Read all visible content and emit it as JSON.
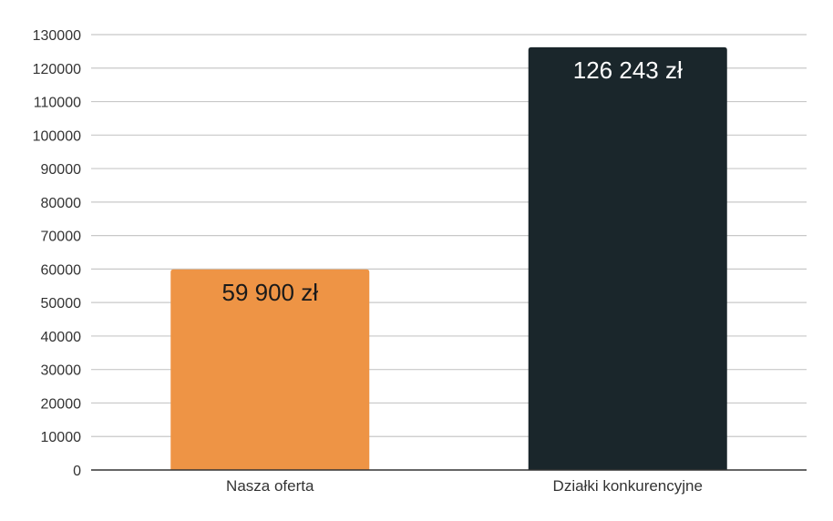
{
  "chart_data": {
    "type": "bar",
    "title": "",
    "xlabel": "",
    "ylabel": "",
    "categories": [
      "Nasza oferta",
      "Działki konkurencyjne"
    ],
    "values": [
      59900,
      126243
    ],
    "data_labels": [
      "59 900 zł",
      "126 243 zł"
    ],
    "ylim": [
      0,
      130000
    ],
    "yticks": [
      0,
      10000,
      20000,
      30000,
      40000,
      50000,
      60000,
      70000,
      80000,
      90000,
      100000,
      110000,
      120000,
      130000
    ],
    "ytick_labels": [
      "0",
      "10000",
      "20000",
      "30000",
      "40000",
      "50000",
      "60000",
      "70000",
      "80000",
      "90000",
      "100000",
      "110000",
      "120000",
      "130000"
    ],
    "grid": true,
    "legend": "none",
    "colors": [
      "#ee9445",
      "#1a262b"
    ],
    "data_label_colors": [
      "#1a1a1a",
      "#ffffff"
    ]
  }
}
